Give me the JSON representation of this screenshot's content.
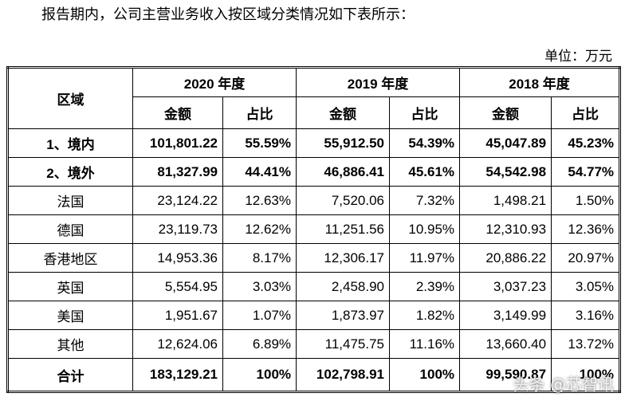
{
  "intro": "报告期内，公司主营业务收入按区域分类情况如下表所示：",
  "unit": "单位：万元",
  "table": {
    "region_header": "区域",
    "years": [
      "2020 年度",
      "2019 年度",
      "2018 年度"
    ],
    "subheaders": [
      "金额",
      "占比",
      "金额",
      "占比",
      "金额",
      "占比"
    ],
    "rows": [
      [
        "1、境内",
        "101,801.22",
        "55.59%",
        "55,912.50",
        "54.39%",
        "45,047.89",
        "45.23%"
      ],
      [
        "2、境外",
        "81,327.99",
        "44.41%",
        "46,886.41",
        "45.61%",
        "54,542.98",
        "54.77%"
      ],
      [
        "法国",
        "23,124.22",
        "12.63%",
        "7,520.06",
        "7.32%",
        "1,498.21",
        "1.50%"
      ],
      [
        "德国",
        "23,119.73",
        "12.62%",
        "11,251.56",
        "10.95%",
        "12,310.93",
        "12.36%"
      ],
      [
        "香港地区",
        "14,953.36",
        "8.17%",
        "12,306.17",
        "11.97%",
        "20,886.22",
        "20.97%"
      ],
      [
        "英国",
        "5,554.95",
        "3.03%",
        "2,458.90",
        "2.39%",
        "3,037.23",
        "3.05%"
      ],
      [
        "美国",
        "1,951.67",
        "1.07%",
        "1,873.97",
        "1.82%",
        "3,149.99",
        "3.16%"
      ],
      [
        "其他",
        "12,624.06",
        "6.89%",
        "11,475.75",
        "11.16%",
        "13,660.40",
        "13.72%"
      ],
      [
        "合计",
        "183,129.21",
        "100%",
        "102,798.91",
        "100%",
        "99,590.87",
        "100%"
      ]
    ]
  },
  "watermark": "头条 @芯智讯"
}
